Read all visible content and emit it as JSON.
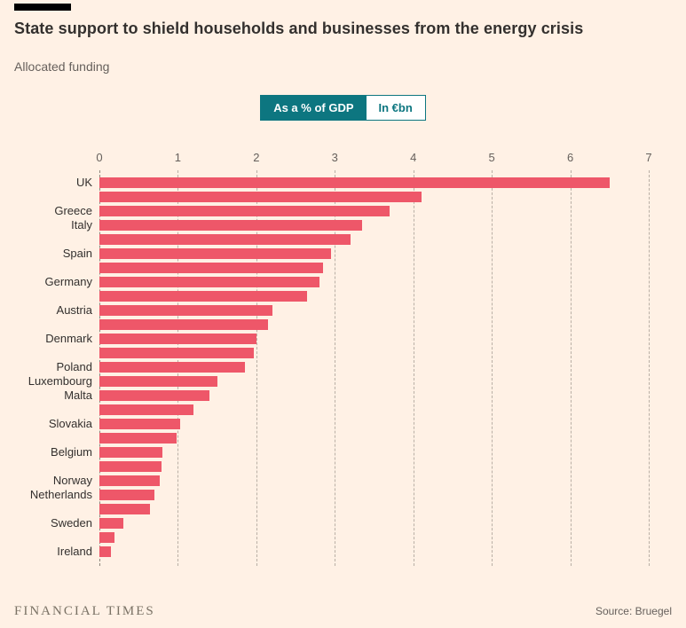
{
  "page": {
    "title": "State support to shield households and businesses from the energy crisis",
    "subtitle": "Allocated funding"
  },
  "toggle": {
    "options": [
      {
        "label": "As a % of GDP",
        "active": true
      },
      {
        "label": "In €bn",
        "active": false
      }
    ]
  },
  "footer": {
    "brand": "FINANCIAL TIMES",
    "source": "Source: Bruegel"
  },
  "colors": {
    "background": "#fff1e5",
    "bar": "#ee5769",
    "accent": "#0d7680",
    "grid": "#b9afa5"
  },
  "chart_data": {
    "type": "bar",
    "orientation": "horizontal",
    "title": "State support to shield households and businesses from the energy crisis",
    "subtitle": "Allocated funding",
    "unit": "% of GDP",
    "xlim": [
      0,
      7
    ],
    "xticks": [
      0,
      1,
      2,
      3,
      4,
      5,
      6,
      7
    ],
    "grid": "vertical-dashed",
    "categories": [
      "UK",
      "",
      "Greece",
      "Italy",
      "",
      "Spain",
      "",
      "Germany",
      "",
      "Austria",
      "",
      "Denmark",
      "",
      "Poland",
      "Luxembourg",
      "Malta",
      "",
      "Slovakia",
      "",
      "Belgium",
      "",
      "Norway",
      "Netherlands",
      "",
      "Sweden",
      "",
      "Ireland"
    ],
    "values": [
      6.5,
      4.1,
      3.7,
      3.35,
      3.2,
      2.95,
      2.85,
      2.8,
      2.65,
      2.2,
      2.15,
      2.0,
      1.97,
      1.85,
      1.5,
      1.4,
      1.2,
      1.03,
      0.98,
      0.8,
      0.79,
      0.77,
      0.7,
      0.64,
      0.3,
      0.19,
      0.15
    ]
  }
}
